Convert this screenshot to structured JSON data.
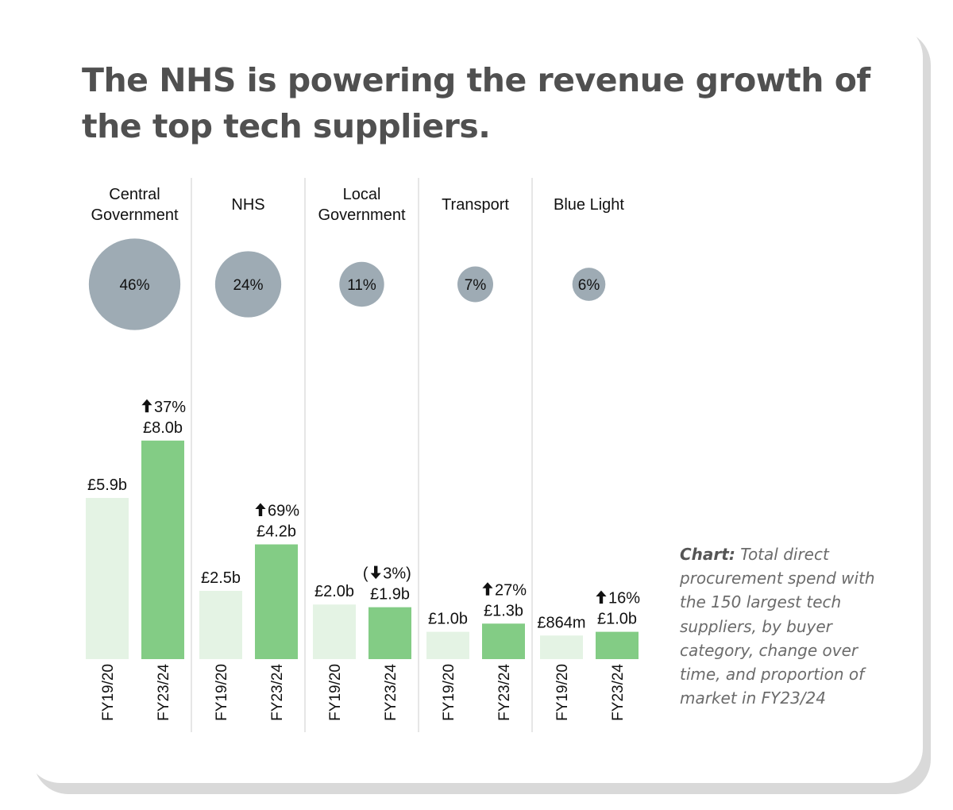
{
  "title": "The NHS is powering the revenue growth of the top tech suppliers.",
  "caption": {
    "label": "Chart:",
    "text": "Total direct procurement spend with the 150 largest tech suppliers, by buyer category, change over time, and proportion of market in FY23/24"
  },
  "colors": {
    "bar_fy1920": "#e4f3e4",
    "bar_fy2324": "#83cc85",
    "circle": "#9eabb4",
    "divider": "#d8d8d8"
  },
  "chart_data": {
    "type": "bar",
    "title": "The NHS is powering the revenue growth of the top tech suppliers.",
    "unit": "£ billions",
    "periods": [
      "FY19/20",
      "FY23/24"
    ],
    "ylim": [
      0,
      8.0
    ],
    "categories": [
      {
        "name": [
          "Central",
          "Government"
        ],
        "share": "46%",
        "share_value": 46,
        "values": [
          5.9,
          8.0
        ],
        "value_labels": [
          "£5.9b",
          "£8.0b"
        ],
        "change": {
          "dir": "up",
          "text": "37%"
        }
      },
      {
        "name": [
          "NHS"
        ],
        "share": "24%",
        "share_value": 24,
        "values": [
          2.5,
          4.2
        ],
        "value_labels": [
          "£2.5b",
          "£4.2b"
        ],
        "change": {
          "dir": "up",
          "text": "69%"
        }
      },
      {
        "name": [
          "Local",
          "Government"
        ],
        "share": "11%",
        "share_value": 11,
        "values": [
          2.0,
          1.9
        ],
        "value_labels": [
          "£2.0b",
          "£1.9b"
        ],
        "change": {
          "dir": "down",
          "text": "3%"
        }
      },
      {
        "name": [
          "Transport"
        ],
        "share": "7%",
        "share_value": 7,
        "values": [
          1.0,
          1.3
        ],
        "value_labels": [
          "£1.0b",
          "£1.3b"
        ],
        "change": {
          "dir": "up",
          "text": "27%"
        }
      },
      {
        "name": [
          "Blue Light"
        ],
        "share": "6%",
        "share_value": 6,
        "values": [
          0.864,
          1.0
        ],
        "value_labels": [
          "£864m",
          "£1.0b"
        ],
        "change": {
          "dir": "up",
          "text": "16%"
        }
      }
    ]
  }
}
